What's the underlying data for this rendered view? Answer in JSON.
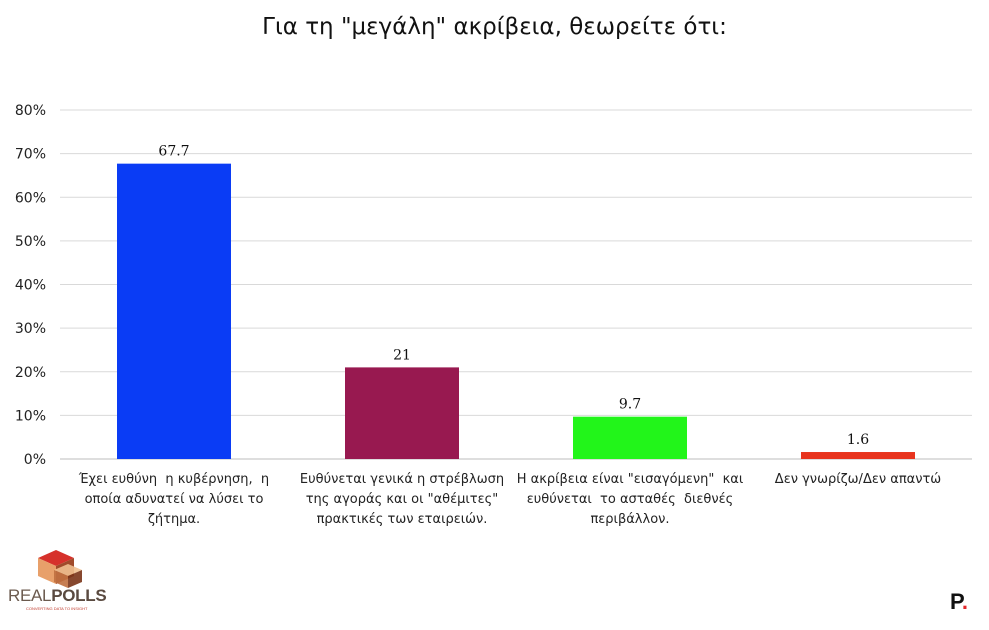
{
  "chart_data": {
    "type": "bar",
    "title": "Για τη \"μεγάλη\" ακρίβεια, θεωρείτε ότι:",
    "categories": [
      [
        "Έχει ευθύνη  η κυβέρνηση,  η",
        "οποία αδυνατεί να λύσει το",
        "ζήτημα."
      ],
      [
        "Ευθύνεται γενικά η στρέβλωση",
        "της αγοράς και οι \"αθέμιτες\"",
        "πρακτικές των εταιρειών."
      ],
      [
        "Η ακρίβεια είναι \"εισαγόμενη\"  και",
        "ευθύνεται  το ασταθές  διεθνές",
        "περιβάλλον."
      ],
      [
        "Δεν γνωρίζω/Δεν απαντώ"
      ]
    ],
    "values": [
      67.7,
      21,
      9.7,
      1.6
    ],
    "value_labels": [
      "67.7",
      "21",
      "9.7",
      "1.6"
    ],
    "colors": [
      "#0a3cf5",
      "#981950",
      "#22f51a",
      "#e8341e"
    ],
    "ylim": [
      0,
      80
    ],
    "yticks": [
      "0%",
      "10%",
      "20%",
      "30%",
      "40%",
      "50%",
      "60%",
      "70%",
      "80%"
    ],
    "grid": true,
    "xlabel": "",
    "ylabel": ""
  },
  "branding": {
    "left_logo_icon": "realpolls-cube-icon",
    "left_logo_text_a": "REAL",
    "left_logo_text_b": "POLLS",
    "left_logo_tagline": "CONVERTING DATA TO INSIGHT",
    "right_logo_letter": "P",
    "right_logo_dot": ".",
    "right_logo_dot_color": "#e3262a"
  }
}
